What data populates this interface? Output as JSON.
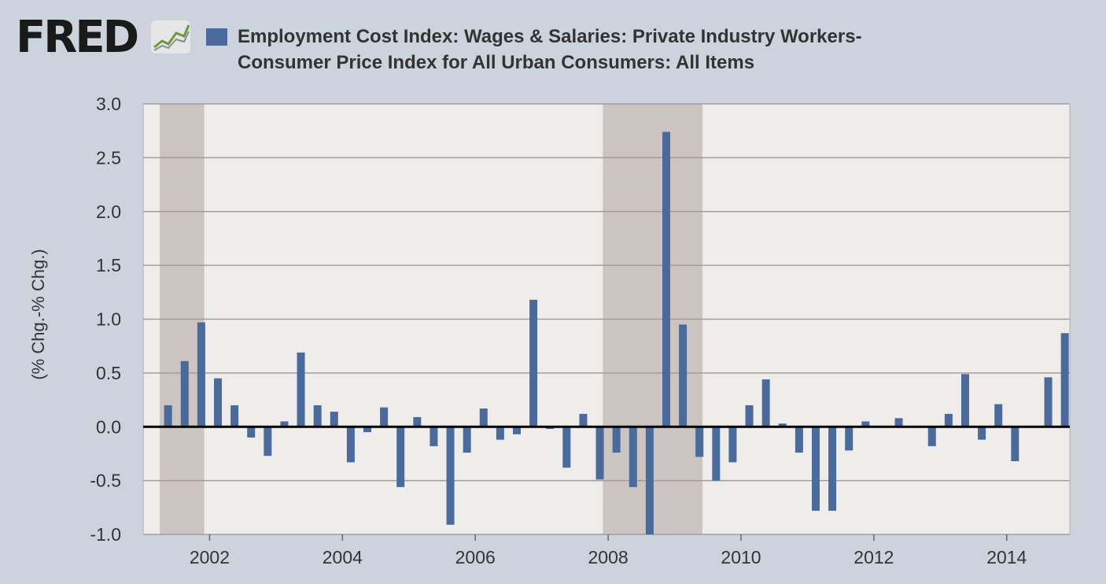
{
  "logo": {
    "text": "FRED",
    "icon": "trend-line-icon"
  },
  "legend": {
    "color": "#4a6a9b",
    "line1": "Employment Cost Index: Wages & Salaries: Private Industry Workers-",
    "line2": "Consumer Price Index for All Urban Consumers: All Items"
  },
  "chart_data": {
    "type": "bar",
    "title": "Employment Cost Index: Wages & Salaries: Private Industry Workers- Consumer Price Index for All Urban Consumers: All Items",
    "xlabel": "",
    "ylabel": "(% Chg.-% Chg.)",
    "ylim": [
      -1.0,
      3.0
    ],
    "xlim": [
      2001.0,
      2014.95
    ],
    "y_ticks": [
      "-1.0",
      "-0.5",
      "0.0",
      "0.5",
      "1.0",
      "1.5",
      "2.0",
      "2.5",
      "3.0"
    ],
    "x_ticks": [
      {
        "value": 2002,
        "label": "2002"
      },
      {
        "value": 2004,
        "label": "2004"
      },
      {
        "value": 2006,
        "label": "2006"
      },
      {
        "value": 2008,
        "label": "2008"
      },
      {
        "value": 2010,
        "label": "2010"
      },
      {
        "value": 2012,
        "label": "2012"
      },
      {
        "value": 2014,
        "label": "2014"
      }
    ],
    "recessions": [
      [
        2001.25,
        2001.92
      ],
      [
        2007.92,
        2009.42
      ]
    ],
    "colors": {
      "bar": "#4a6a9b",
      "plot_bg": "#efedeb",
      "recession": "#cbc4c0",
      "grid": "#a59b9f",
      "zero": "#000000",
      "frame": "#b7b0ae"
    },
    "series": [
      {
        "name": "Employment Cost Index: Wages & Salaries: Private Industry Workers- Consumer Price Index for All Urban Consumers: All Items",
        "x": [
          "2001-Q2",
          "2001-Q3",
          "2001-Q4",
          "2002-Q1",
          "2002-Q2",
          "2002-Q3",
          "2002-Q4",
          "2003-Q1",
          "2003-Q2",
          "2003-Q3",
          "2003-Q4",
          "2004-Q1",
          "2004-Q2",
          "2004-Q3",
          "2004-Q4",
          "2005-Q1",
          "2005-Q2",
          "2005-Q3",
          "2005-Q4",
          "2006-Q1",
          "2006-Q2",
          "2006-Q3",
          "2006-Q4",
          "2007-Q1",
          "2007-Q2",
          "2007-Q3",
          "2007-Q4",
          "2008-Q1",
          "2008-Q2",
          "2008-Q3",
          "2008-Q4",
          "2009-Q1",
          "2009-Q2",
          "2009-Q3",
          "2009-Q4",
          "2010-Q1",
          "2010-Q2",
          "2010-Q3",
          "2010-Q4",
          "2011-Q1",
          "2011-Q2",
          "2011-Q3",
          "2011-Q4",
          "2012-Q1",
          "2012-Q2",
          "2012-Q3",
          "2012-Q4",
          "2013-Q1",
          "2013-Q2",
          "2013-Q3",
          "2013-Q4",
          "2014-Q1",
          "2014-Q2",
          "2014-Q3",
          "2014-Q4"
        ],
        "values": [
          0.2,
          0.61,
          0.97,
          0.45,
          0.2,
          -0.1,
          -0.27,
          0.05,
          0.69,
          0.2,
          0.14,
          -0.33,
          -0.05,
          0.18,
          -0.56,
          0.09,
          -0.18,
          -0.91,
          -0.24,
          0.17,
          -0.12,
          -0.07,
          1.18,
          -0.02,
          -0.38,
          0.12,
          -0.49,
          -0.24,
          -0.56,
          -1.0,
          2.74,
          0.95,
          -0.28,
          -0.5,
          -0.33,
          0.2,
          0.44,
          0.03,
          -0.24,
          -0.78,
          -0.78,
          -0.22,
          0.05,
          0.0,
          0.08,
          0.0,
          -0.18,
          0.12,
          0.49,
          -0.12,
          0.21,
          -0.32,
          0.0,
          0.46,
          0.87
        ]
      }
    ]
  }
}
